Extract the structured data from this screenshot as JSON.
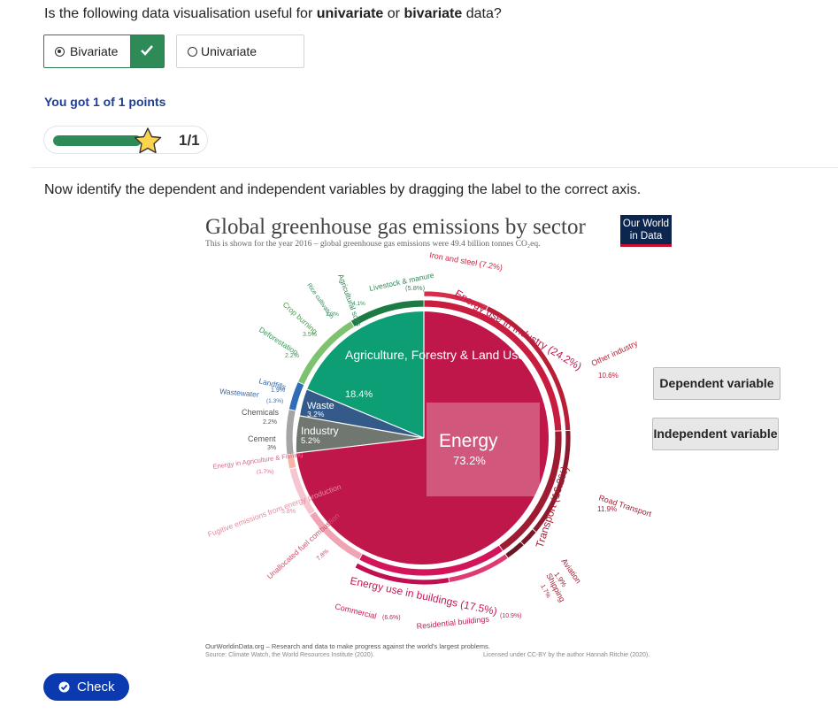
{
  "question1": {
    "prefix": "Is the following data visualisation useful for ",
    "opt1": "univariate",
    "mid": " or ",
    "opt2": "bivariate",
    "suffix": " data?"
  },
  "options": [
    {
      "label": "Bivariate",
      "selected": true,
      "correct": true
    },
    {
      "label": "Univariate",
      "selected": false
    }
  ],
  "result": {
    "points_text": "You got 1 of 1 points",
    "progress_fraction": 1.0,
    "score": "1/1"
  },
  "question2": "Now identify the dependent and independent variables by dragging the label to the correct axis.",
  "figure": {
    "title": "Global greenhouse gas emissions by sector",
    "subtitle": "This is shown for the year 2016 – global greenhouse gas emissions were 49.4 billion tonnes CO₂eq.",
    "logo_line1": "Our World",
    "logo_line2": "in Data",
    "pie": [
      {
        "label": "Energy",
        "value": "73.2%"
      },
      {
        "label": "Agriculture, Forestry & Land Use",
        "value": "18.4%"
      },
      {
        "label": "Industry",
        "value": "5.2%"
      },
      {
        "label": "Waste",
        "value": "3.2%"
      }
    ],
    "outer_labels": [
      {
        "label": "Energy use in Industry (24.2%)"
      },
      {
        "label": "Transport (16.2%)"
      },
      {
        "label": "Energy use in buildings (17.5%)"
      },
      {
        "label": "Iron and steel (7.2%)"
      },
      {
        "label": "Other industry",
        "value": "10.6%"
      },
      {
        "label": "Road Transport",
        "value": "11.9%"
      },
      {
        "label": "Aviation",
        "value": "1.9%"
      },
      {
        "label": "Shipping",
        "value": "1.7%"
      },
      {
        "label": "Commercial",
        "value": "(6.6%)"
      },
      {
        "label": "Residential buildings",
        "value": "(10.9%)"
      },
      {
        "label": "Unallocated fuel combustion",
        "value": "7.8%"
      },
      {
        "label": "Fugitive emissions from energy production",
        "value": "5.8%"
      },
      {
        "label": "Energy in Agriculture & Fishing",
        "value": "(1.7%)"
      },
      {
        "label": "Cement",
        "value": "3%"
      },
      {
        "label": "Chemicals",
        "value": "2.2%"
      },
      {
        "label": "Wastewater",
        "value": "(1.3%)"
      },
      {
        "label": "Landfills",
        "value": "1.9%"
      },
      {
        "label": "Deforestation",
        "value": "2.2%"
      },
      {
        "label": "Crop burning",
        "value": "3.5%"
      },
      {
        "label": "Livestock & manure",
        "value": "(5.8%)"
      },
      {
        "label": "Agricultural soils",
        "value": "4.1%"
      },
      {
        "label": "Rice cultivation",
        "value": "1.3%"
      }
    ],
    "footer_left": "OurWorldinData.org – Research and data to make progress against the world's largest problems.",
    "footer_source": "Source: Climate Watch, the World Resources Institute (2020).",
    "footer_license": "Licensed under CC-BY by the author Hannah Ritchie (2020)."
  },
  "drag_labels": {
    "dependent": "Dependent variable",
    "independent": "Independent variable"
  },
  "check_button": "Check",
  "colors": {
    "energy": "#c0174a",
    "agriculture": "#0d9e75",
    "industry": "#6f7770",
    "waste": "#345a8a",
    "correct": "#2e8b57",
    "points_text": "#1f3f97",
    "check_button": "#0b3ab0"
  }
}
